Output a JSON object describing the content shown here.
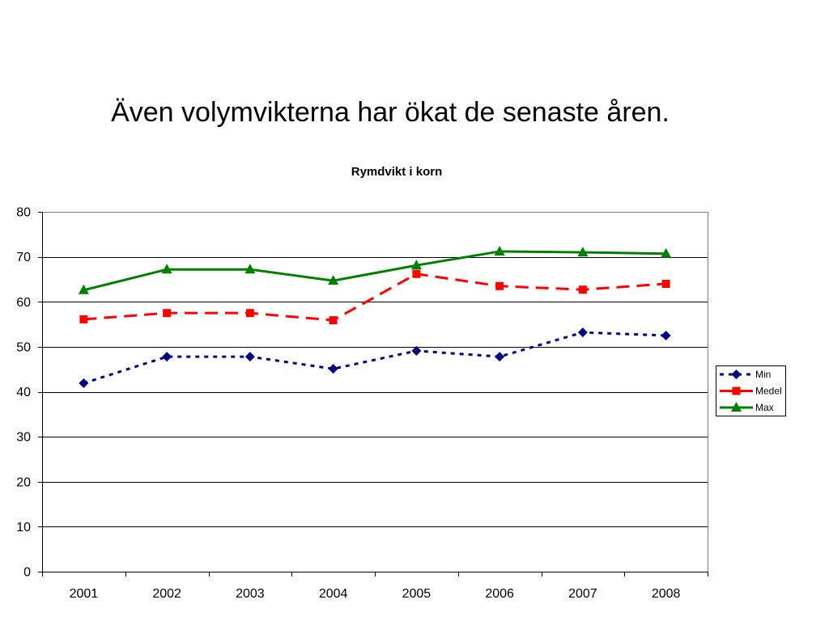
{
  "slide": {
    "title": "Även volymvikterna har ökat de senaste åren."
  },
  "chart_data": {
    "type": "line",
    "title": "Rymdvikt i korn",
    "categories": [
      "2001",
      "2002",
      "2003",
      "2004",
      "2005",
      "2006",
      "2007",
      "2008"
    ],
    "ylim": [
      0,
      80
    ],
    "yticks": [
      0,
      10,
      20,
      30,
      40,
      50,
      60,
      70,
      80
    ],
    "grid": true,
    "legend": "right",
    "series": [
      {
        "name": "Min",
        "values": [
          41.9,
          47.8,
          47.8,
          45.1,
          49.1,
          47.8,
          53.2,
          52.5
        ],
        "color": "#000080",
        "line": "dotted",
        "marker": "diamond"
      },
      {
        "name": "Medel",
        "values": [
          56.1,
          57.5,
          57.5,
          55.9,
          66.2,
          63.5,
          62.7,
          64.0
        ],
        "color": "#FF0000",
        "line": "dashed",
        "marker": "square"
      },
      {
        "name": "Max",
        "values": [
          62.6,
          67.2,
          67.2,
          64.7,
          68.1,
          71.2,
          71.0,
          70.7
        ],
        "color": "#008000",
        "line": "solid",
        "marker": "triangle"
      }
    ]
  }
}
